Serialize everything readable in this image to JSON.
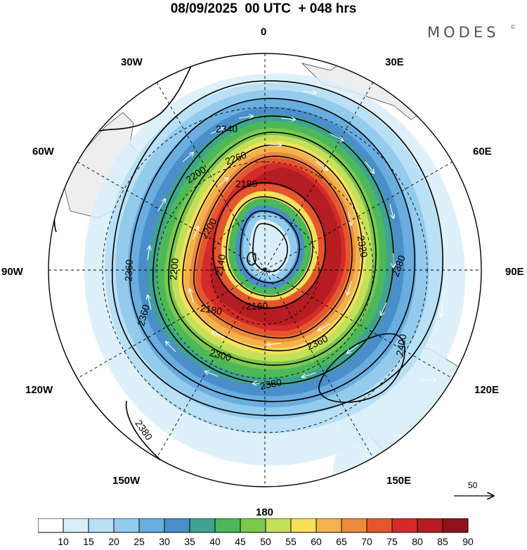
{
  "title": "08/09/2025  00 UTC  + 048 hrs",
  "brand": "MODES",
  "brand_mark": "©",
  "longitude_labels": {
    "lon_0": "0",
    "lon_30e": "30E",
    "lon_60e": "60E",
    "lon_90e": "90E",
    "lon_120e": "120E",
    "lon_150e": "150E",
    "lon_180": "180",
    "lon_150w": "150W",
    "lon_120w": "120W",
    "lon_90w": "90W",
    "lon_60w": "60W",
    "lon_30w": "30W"
  },
  "height_contours": {
    "values": [
      "2140",
      "2160",
      "2180",
      "2200",
      "2260",
      "2300",
      "2320",
      "2340",
      "2360",
      "2380",
      "2400"
    ],
    "label_texts": {
      "c2140": "2140",
      "c2160": "2160",
      "c2180a": "2180",
      "c2180b": "2180",
      "c2200a": "2200",
      "c2200b": "2200",
      "c2200c": "2200",
      "c2260": "2260",
      "c2300": "2300",
      "c2320": "2320",
      "c2340": "2340",
      "c2360a": "2360",
      "c2360b": "2360",
      "c2360c": "2360",
      "c2380a": "2380",
      "c2380b": "2380",
      "c2380c": "2380",
      "c2400": "2400"
    }
  },
  "reference_vector": {
    "value": "50"
  },
  "colorbar": {
    "levels": [
      "10",
      "15",
      "20",
      "25",
      "30",
      "35",
      "40",
      "45",
      "50",
      "55",
      "60",
      "65",
      "70",
      "75",
      "80",
      "85",
      "90"
    ],
    "colors": [
      "#ffffff",
      "#d8eef9",
      "#b9e0f5",
      "#93cbec",
      "#6aaee0",
      "#4a8fc9",
      "#3fa394",
      "#4cb85a",
      "#7cc84e",
      "#c4e05a",
      "#f6e05a",
      "#f5b14e",
      "#ee8a3c",
      "#e4572e",
      "#d42a2a",
      "#b51d23",
      "#8e1419"
    ]
  }
}
